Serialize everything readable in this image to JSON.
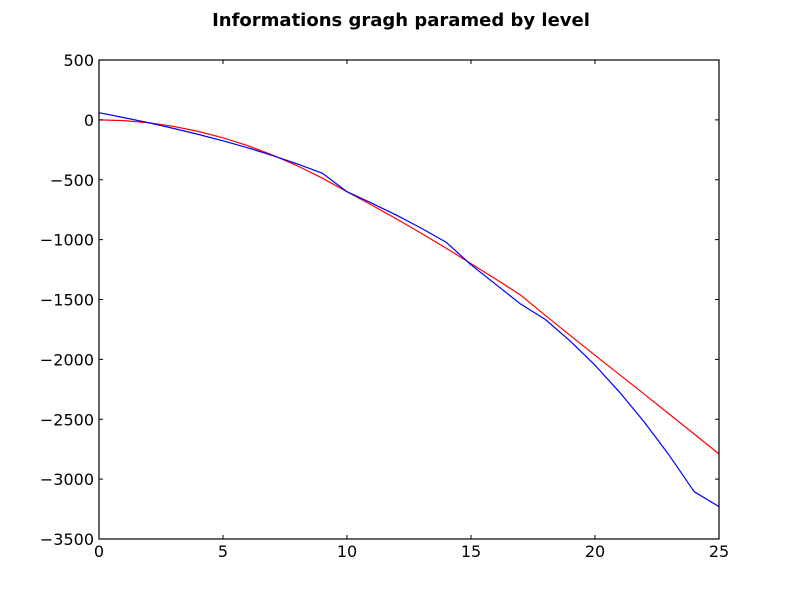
{
  "chart_data": {
    "type": "line",
    "title": "Informations gragh paramed by level",
    "xlabel": "",
    "ylabel": "",
    "xlim": [
      0,
      25
    ],
    "ylim": [
      -3500,
      500
    ],
    "x_ticks": [
      0,
      5,
      10,
      15,
      20,
      25
    ],
    "y_ticks": [
      500,
      0,
      -500,
      -1000,
      -1500,
      -2000,
      -2500,
      -3000,
      -3500
    ],
    "x_tick_labels": [
      "0",
      "5",
      "10",
      "15",
      "20",
      "25"
    ],
    "y_tick_labels": [
      "500",
      "0",
      "−500",
      "−1000",
      "−1500",
      "−2000",
      "−2500",
      "−3000",
      "−3500"
    ],
    "grid": false,
    "legend": "none",
    "series": [
      {
        "color": "#ff0000",
        "x": [
          0,
          1,
          2,
          3,
          4,
          5,
          6,
          7,
          8,
          9,
          10,
          11,
          12,
          13,
          14,
          15,
          16,
          17,
          18,
          19,
          20,
          21,
          22,
          23,
          24,
          25
        ],
        "y": [
          0,
          -6,
          -24,
          -54,
          -96,
          -150,
          -216,
          -294,
          -384,
          -486,
          -600,
          -712,
          -828,
          -948,
          -1072,
          -1200,
          -1330,
          -1463,
          -1633,
          -1800,
          -1966,
          -2129,
          -2293,
          -2458,
          -2623,
          -2790
        ]
      },
      {
        "color": "#0000ff",
        "x": [
          0,
          1,
          2,
          3,
          4,
          5,
          6,
          7,
          8,
          9,
          10,
          11,
          12,
          13,
          14,
          15,
          16,
          17,
          18,
          19,
          20,
          21,
          22,
          23,
          24,
          25
        ],
        "y": [
          60,
          19,
          -24,
          -71,
          -121,
          -175,
          -233,
          -298,
          -368,
          -445,
          -600,
          -696,
          -796,
          -905,
          -1022,
          -1210,
          -1374,
          -1538,
          -1667,
          -1847,
          -2049,
          -2276,
          -2527,
          -2803,
          -3105,
          -3230
        ]
      }
    ]
  }
}
